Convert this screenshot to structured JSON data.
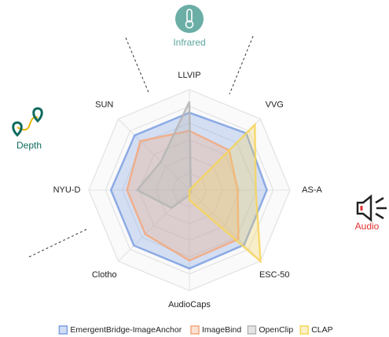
{
  "chart_data": {
    "type": "radar",
    "categories": [
      "LLVIP",
      "VVG",
      "AS-A",
      "ESC-50",
      "AudioCaps",
      "Clotho",
      "NYU-D",
      "SUN"
    ],
    "rlim": [
      0,
      100
    ],
    "grid": true,
    "legend": "bottom",
    "series": [
      {
        "name": "EmergentBridge-ImageAnchor",
        "color": "#7c9fe2",
        "values": [
          77,
          80,
          77,
          77,
          78,
          78,
          78,
          77
        ]
      },
      {
        "name": "ImageBind",
        "color": "#f3a87e",
        "values": [
          59,
          56,
          48,
          69,
          70,
          62,
          62,
          69
        ]
      },
      {
        "name": "OpenClip",
        "color": "#b5b5b5",
        "values": [
          88,
          2,
          2,
          2,
          5,
          25,
          52,
          40
        ]
      },
      {
        "name": "CLAP",
        "color": "#f6d55c",
        "values": [
          0,
          92,
          66,
          100,
          10,
          0,
          0,
          0
        ]
      }
    ],
    "annotations": [
      "Infrared",
      "Depth",
      "Audio"
    ]
  }
}
